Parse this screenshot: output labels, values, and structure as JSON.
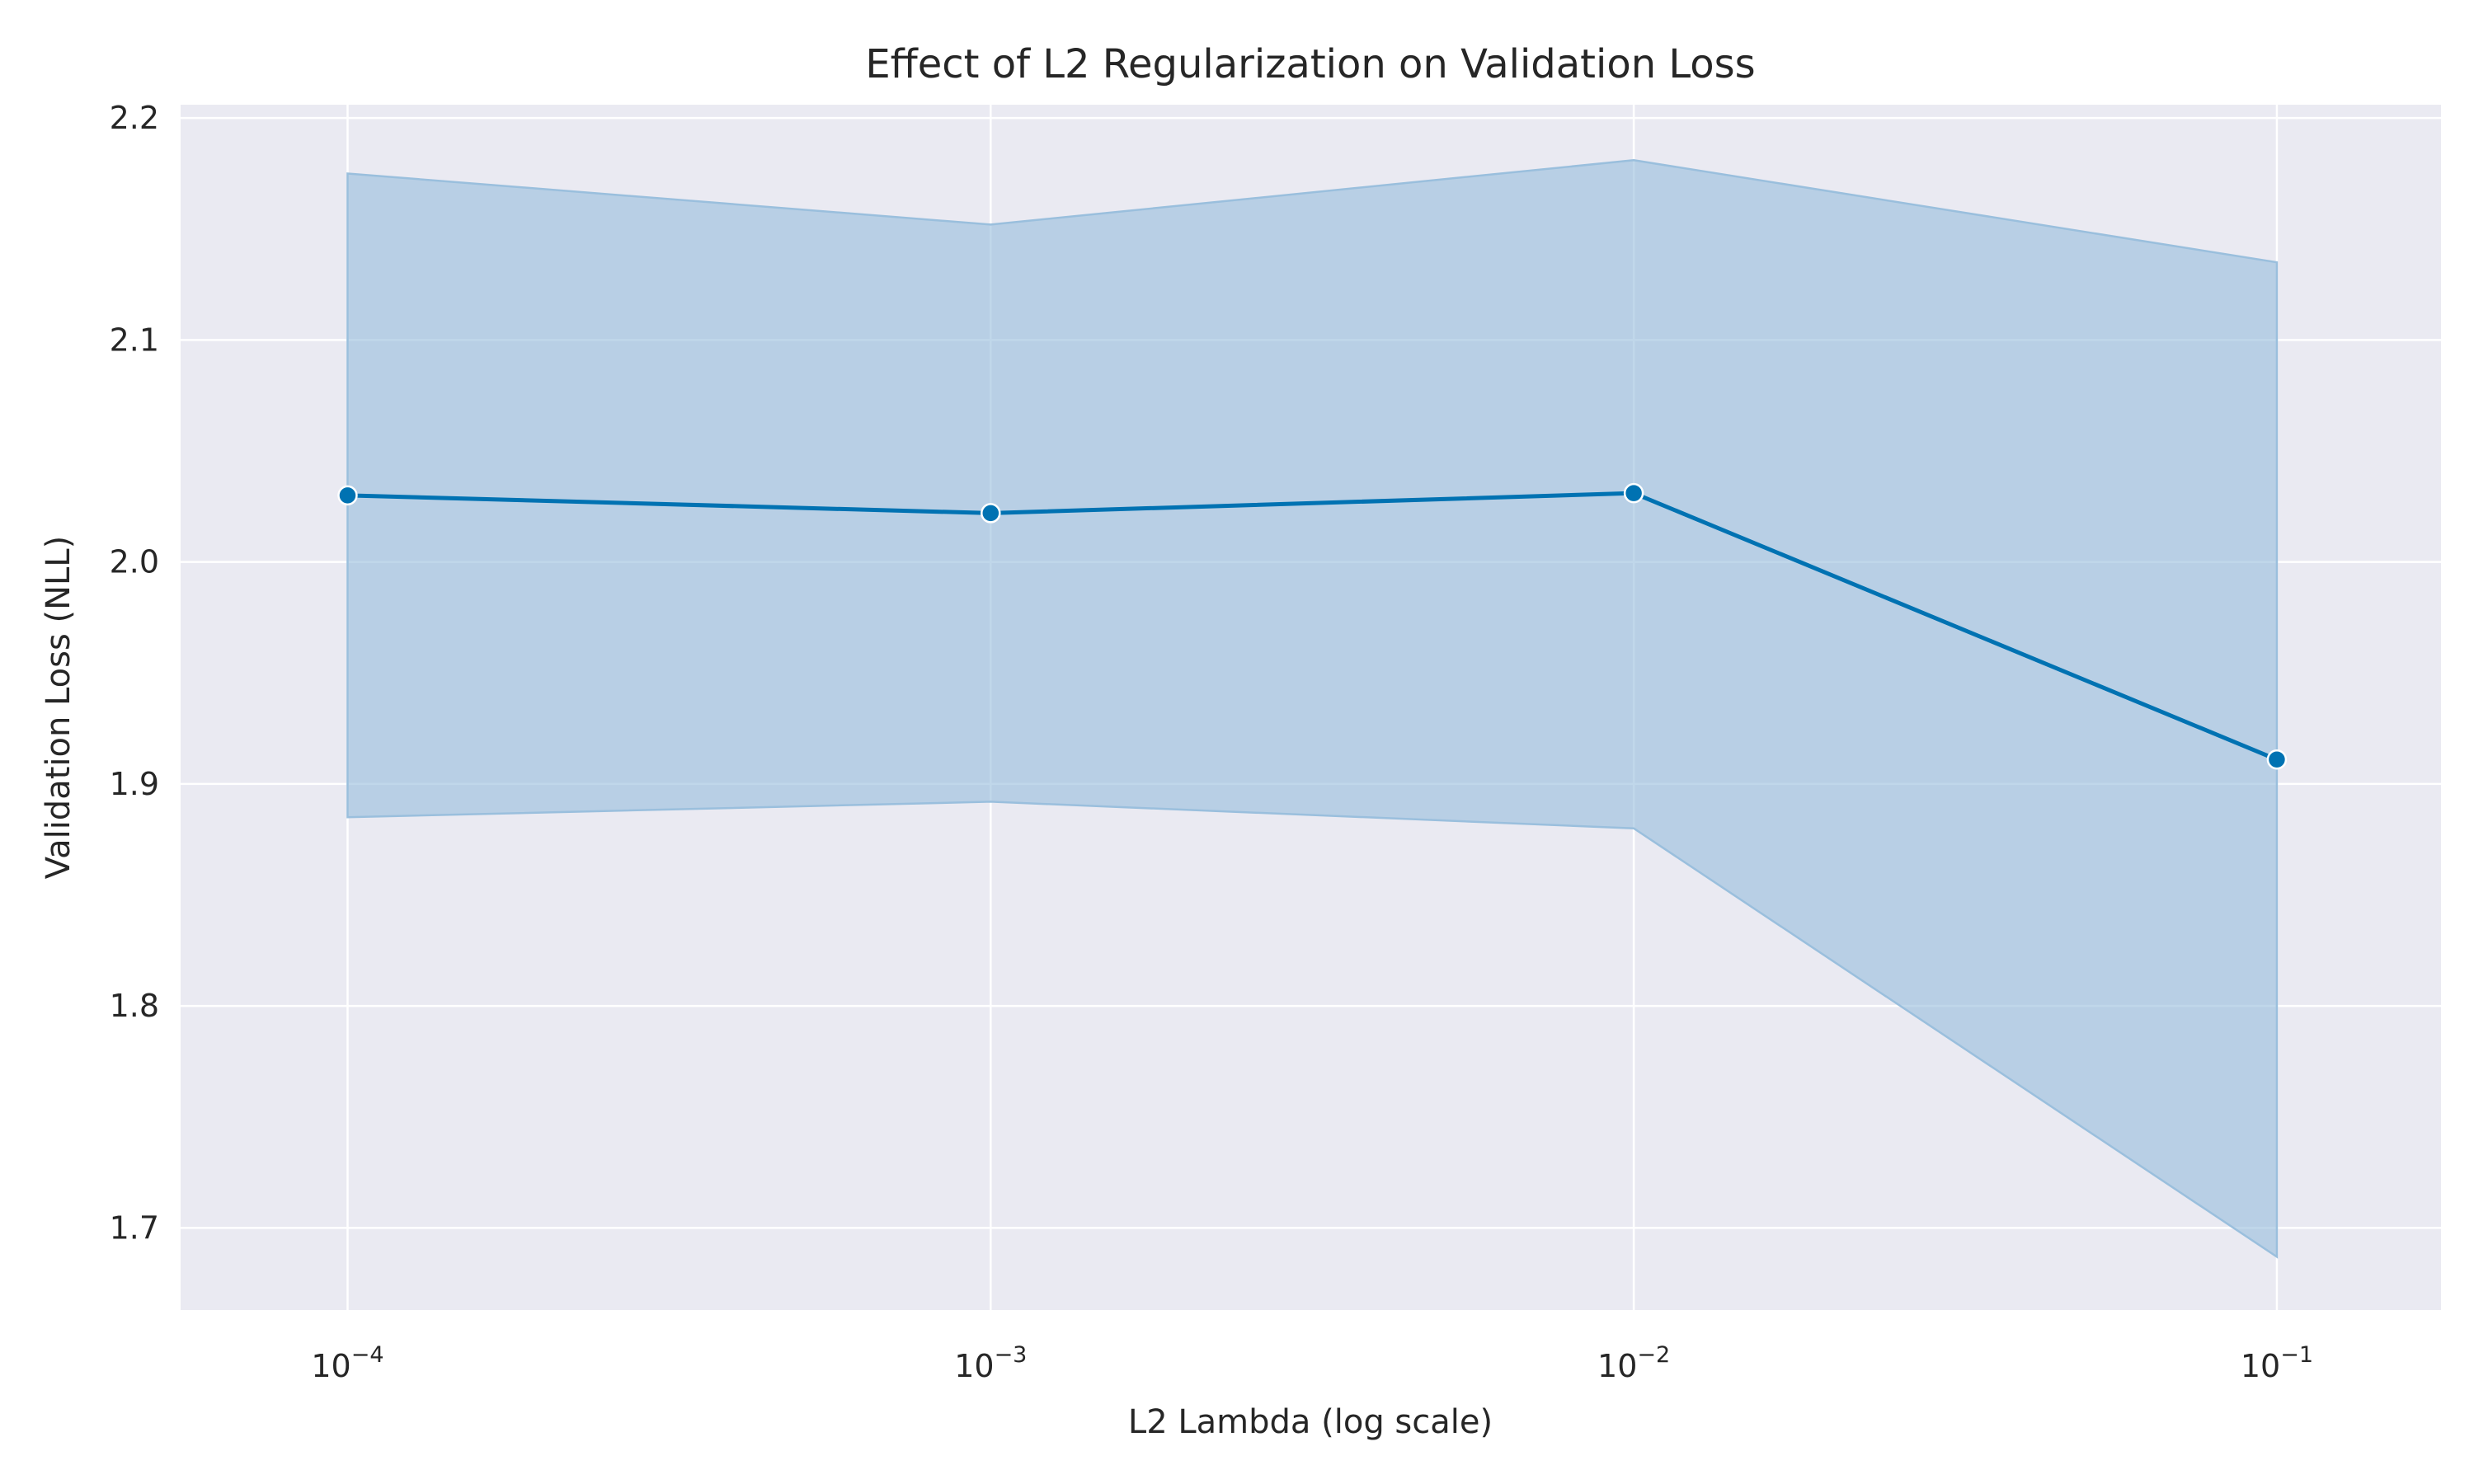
{
  "chart_data": {
    "type": "line",
    "title": "Effect of L2 Regularization on Validation Loss",
    "xlabel": "L2 Lambda (log scale)",
    "ylabel": "Validation Loss (NLL)",
    "xscale": "log",
    "x": [
      0.0001,
      0.001,
      0.01,
      0.1
    ],
    "xlim": [
      5.5e-05,
      0.18
    ],
    "ylim": [
      1.663,
      2.206
    ],
    "xticks": [
      {
        "value": 0.0001,
        "base": "10",
        "exp": "−4"
      },
      {
        "value": 0.001,
        "base": "10",
        "exp": "−3"
      },
      {
        "value": 0.01,
        "base": "10",
        "exp": "−2"
      },
      {
        "value": 0.1,
        "base": "10",
        "exp": "−1"
      }
    ],
    "yticks": [
      {
        "value": 1.7,
        "label": "1.7"
      },
      {
        "value": 1.8,
        "label": "1.8"
      },
      {
        "value": 1.9,
        "label": "1.9"
      },
      {
        "value": 2.0,
        "label": "2.0"
      },
      {
        "value": 2.1,
        "label": "2.1"
      },
      {
        "value": 2.2,
        "label": "2.2"
      }
    ],
    "grid": true,
    "series": [
      {
        "values": [
          2.03,
          2.022,
          2.031,
          1.911
        ],
        "ci_upper": [
          2.175,
          2.152,
          2.181,
          2.135
        ],
        "ci_lower": [
          1.885,
          1.892,
          1.88,
          1.687
        ]
      }
    ],
    "colors": {
      "line": "#0072B2",
      "band": "#9ABFDD",
      "plot_bg": "#EAEAF2",
      "grid": "#FFFFFF",
      "marker_edge": "#FFFFFF"
    }
  }
}
